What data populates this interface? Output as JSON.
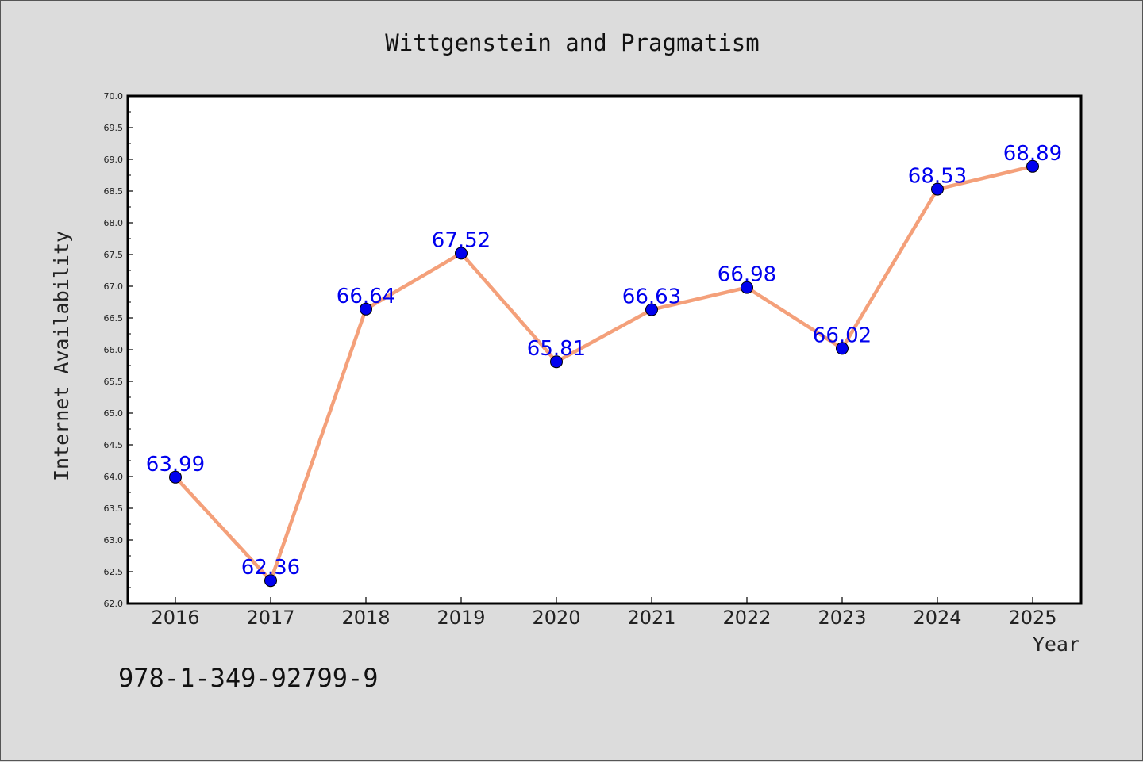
{
  "chart_data": {
    "type": "line",
    "title": "Wittgenstein and Pragmatism",
    "xlabel": "Year",
    "ylabel": "Internet Availability",
    "categories": [
      "2016",
      "2017",
      "2018",
      "2019",
      "2020",
      "2021",
      "2022",
      "2023",
      "2024",
      "2025"
    ],
    "series": [
      {
        "values": [
          63.99,
          62.36,
          66.64,
          67.52,
          65.81,
          66.63,
          66.98,
          66.02,
          68.53,
          68.89
        ],
        "labels": [
          "63.99",
          "62.36",
          "66.64",
          "67.52",
          "65.81",
          "66.63",
          "66.98",
          "66.02",
          "68.53",
          "68.89"
        ],
        "line_color": "#f4a07a",
        "marker_color": "#0000ee"
      }
    ],
    "ylim": [
      62.0,
      70.0
    ],
    "yticks": [
      "62.0",
      "62.5",
      "63.0",
      "63.5",
      "64.0",
      "64.5",
      "65.0",
      "65.5",
      "66.0",
      "66.5",
      "67.0",
      "67.5",
      "68.0",
      "68.5",
      "69.0",
      "69.5",
      "70.0"
    ],
    "grid": false,
    "legend": "none"
  },
  "isbn": "978-1-349-92799-9",
  "colors": {
    "background": "#dcdcdc",
    "plot_background": "#ffffff",
    "line": "#f4a07a",
    "marker": "#0000ee",
    "data_label": "#0000ee"
  }
}
